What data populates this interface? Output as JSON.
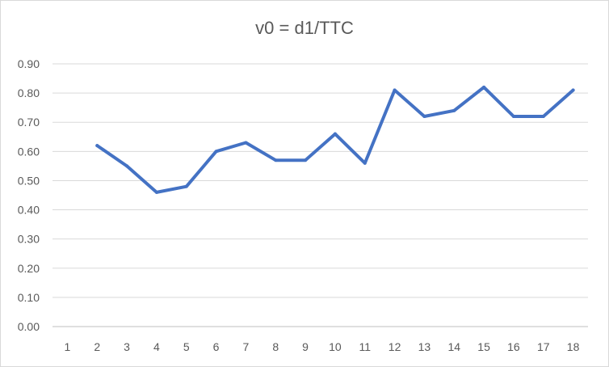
{
  "chart_data": {
    "type": "line",
    "title": "v0 = d1/TTC",
    "xlabel": "",
    "ylabel": "",
    "categories": [
      "1",
      "2",
      "3",
      "4",
      "5",
      "6",
      "7",
      "8",
      "9",
      "10",
      "11",
      "12",
      "13",
      "14",
      "15",
      "16",
      "17",
      "18"
    ],
    "series": [
      {
        "values": [
          null,
          0.62,
          0.55,
          0.46,
          0.48,
          0.6,
          0.63,
          0.57,
          0.57,
          0.66,
          0.56,
          0.81,
          0.72,
          0.74,
          0.82,
          0.72,
          0.72,
          0.81
        ],
        "color": "#4472c4"
      }
    ],
    "ylim": [
      0,
      0.9
    ],
    "yticks": [
      "0.00",
      "0.10",
      "0.20",
      "0.30",
      "0.40",
      "0.50",
      "0.60",
      "0.70",
      "0.80",
      "0.90"
    ],
    "grid": true,
    "legend": "none"
  }
}
